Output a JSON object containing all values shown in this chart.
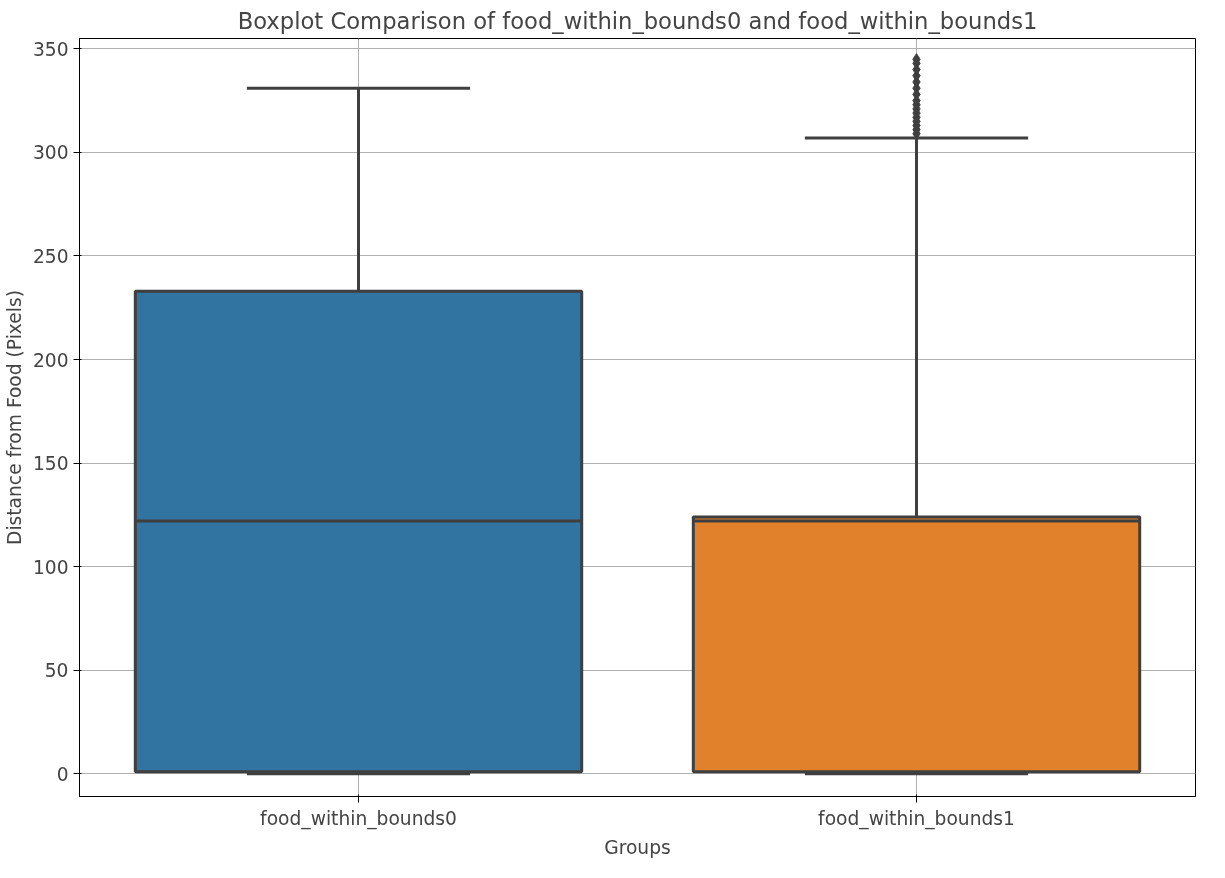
{
  "chart_data": {
    "type": "box",
    "title": "Boxplot Comparison of food_within_bounds0 and food_within_bounds1",
    "xlabel": "Groups",
    "ylabel": "Distance from Food (Pixels)",
    "categories": [
      "food_within_bounds0",
      "food_within_bounds1"
    ],
    "colors": [
      "#3274a1",
      "#e1812c"
    ],
    "boxes": [
      {
        "low": 0,
        "q1": 1,
        "median": 122,
        "q3": 233,
        "high": 331
      },
      {
        "low": 0,
        "q1": 1,
        "median": 122,
        "q3": 124,
        "high": 307,
        "outliers": [
          309,
          311,
          313,
          315,
          317,
          319,
          321,
          323,
          325,
          328,
          331,
          334,
          337,
          340,
          343,
          345
        ]
      }
    ],
    "ylim": [
      -11,
      355
    ],
    "yticks": [
      0,
      50,
      100,
      150,
      200,
      250,
      300,
      350
    ],
    "grid": true
  }
}
